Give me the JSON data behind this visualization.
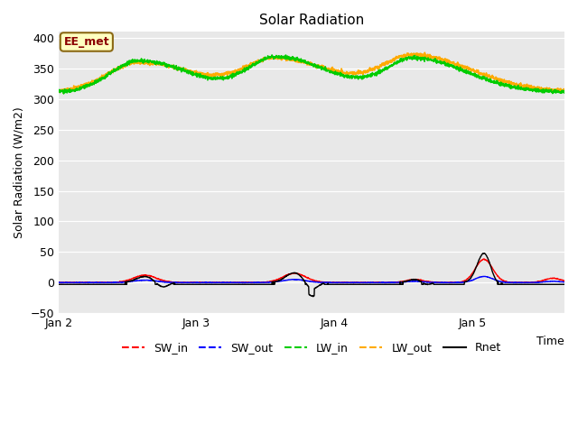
{
  "title": "Solar Radiation",
  "ylabel": "Solar Radiation (W/m2)",
  "xlabel": "Time",
  "ylim": [
    -50,
    410
  ],
  "yticks": [
    -50,
    0,
    50,
    100,
    150,
    200,
    250,
    300,
    350,
    400
  ],
  "plot_bg_color": "#e8e8e8",
  "fig_bg_color": "#ffffff",
  "annotation_text": "EE_met",
  "annotation_bg": "#ffffc0",
  "annotation_border": "#8b6914",
  "annotation_text_color": "#8b0000",
  "legend_entries": [
    "SW_in",
    "SW_out",
    "LW_in",
    "LW_out",
    "Rnet"
  ],
  "line_colors": {
    "SW_in": "#ff0000",
    "SW_out": "#0000ff",
    "LW_in": "#00cc00",
    "LW_out": "#ffaa00",
    "Rnet": "#000000"
  }
}
